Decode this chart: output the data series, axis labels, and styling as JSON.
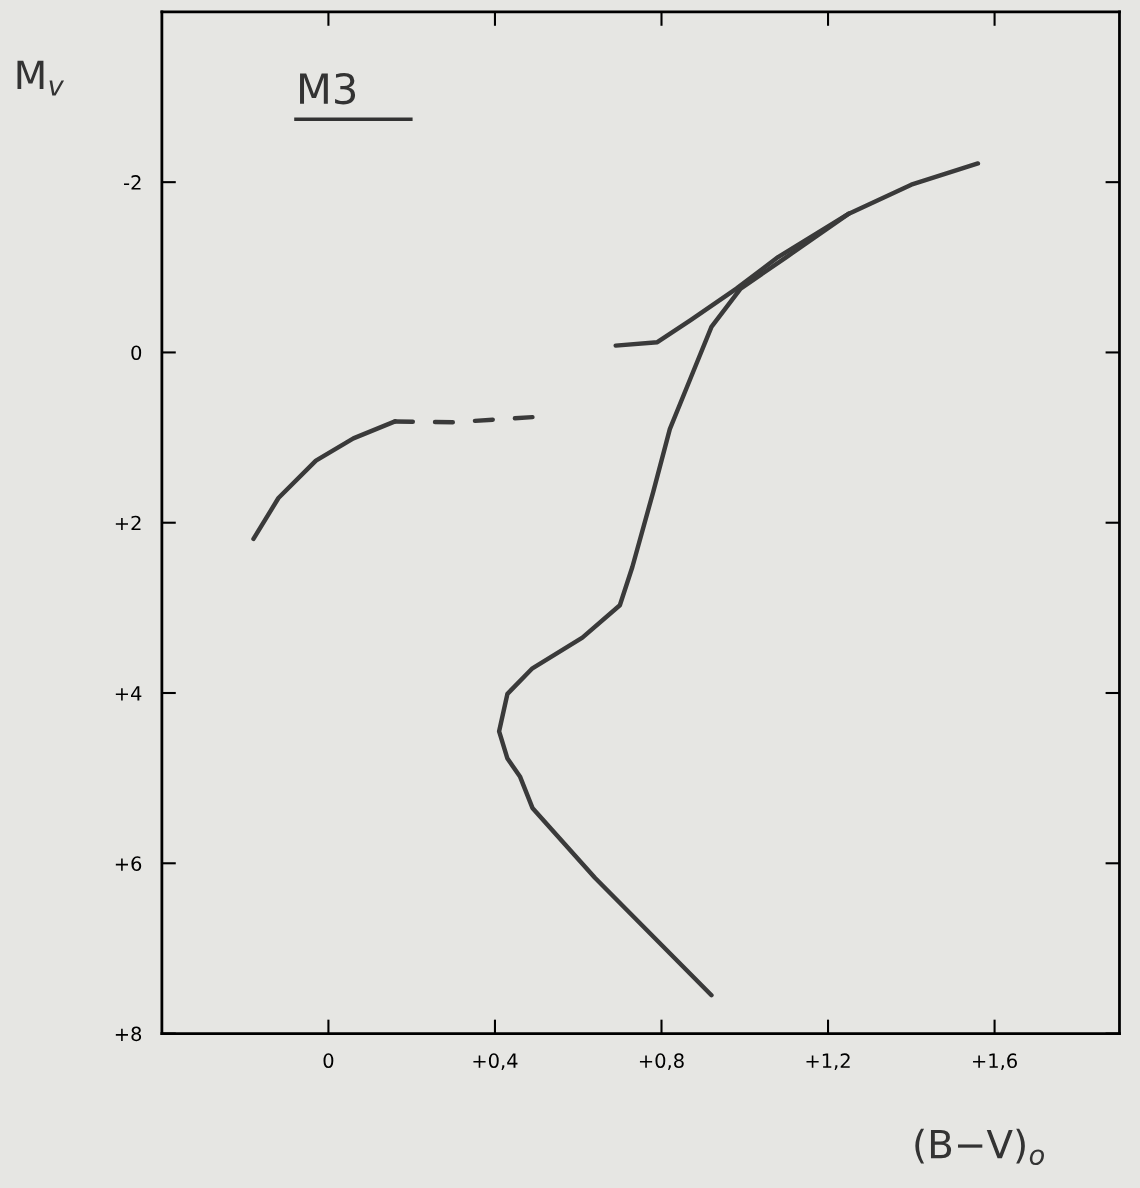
{
  "chart_data": {
    "type": "line",
    "xlabel": "(B−V)$_{o}$",
    "ylabel": "M$_{v}$",
    "annotations": [
      "M3"
    ],
    "xlim": [
      -0.4,
      1.9
    ],
    "ylim": [
      8,
      -4
    ],
    "xticks": [
      0,
      {
        "value": 0.4,
        "label": "+0,4"
      },
      {
        "value": 0.8,
        "label": "+0,8"
      },
      {
        "value": 1.2,
        "label": "+1,2"
      },
      {
        "value": 1.6,
        "label": "+1,6"
      }
    ],
    "yticks": [
      -2,
      0,
      {
        "value": 2,
        "label": "+2"
      },
      {
        "value": 4,
        "label": "+4"
      },
      {
        "value": 6,
        "label": "+6"
      },
      {
        "value": 8,
        "label": "+8"
      }
    ],
    "grid": false,
    "marker": "none",
    "line_style": "solid",
    "series": [
      {
        "color": "#3a3a3a",
        "x": [
          0.92,
          0.64,
          0.49,
          0.46,
          0.43,
          0.41,
          0.43,
          0.49,
          0.61,
          0.7,
          0.73,
          0.78,
          0.82,
          0.87,
          0.92,
          0.99,
          1.1,
          1.25,
          1.4,
          1.56
        ],
        "values": [
          7.55,
          6.17,
          5.35,
          4.98,
          4.77,
          4.45,
          4.01,
          3.71,
          3.35,
          2.97,
          2.52,
          1.64,
          0.9,
          0.3,
          -0.3,
          -0.75,
          -1.12,
          -1.63,
          -1.97,
          -2.22
        ]
      },
      {
        "color": "#3a3a3a",
        "x": [
          0.69,
          0.79,
          0.87,
          0.98,
          1.08,
          1.25
        ],
        "values": [
          -0.08,
          -0.12,
          -0.38,
          -0.75,
          -1.12,
          -1.63
        ]
      },
      {
        "color": "#3a3a3a",
        "x": [
          -0.18,
          -0.12,
          -0.03,
          0.06,
          0.16
        ],
        "values": [
          2.19,
          1.71,
          1.27,
          1.01,
          0.81
        ]
      },
      {
        "color": "#3a3a3a",
        "line_style": "dashed",
        "x": [
          0.16,
          0.3,
          0.49
        ],
        "values": [
          0.81,
          0.82,
          0.76
        ]
      }
    ]
  }
}
